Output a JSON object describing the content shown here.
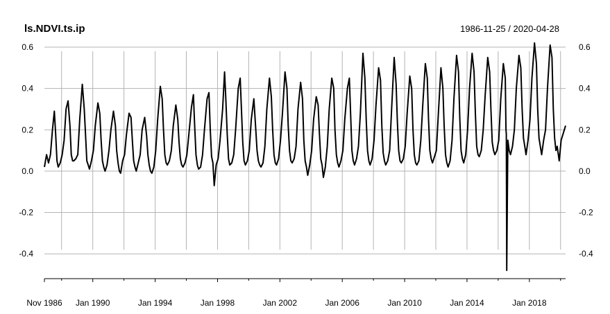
{
  "chart_data": {
    "type": "line",
    "title": "ls.NDVI.ts.ip",
    "date_range_label": "1986-11-25 / 2020-04-28",
    "xlabel": "",
    "ylabel": "",
    "xlim": [
      "1986-11-25",
      "2020-04-28"
    ],
    "ylim": [
      -0.52,
      0.62
    ],
    "y_ticks": [
      -0.4,
      -0.2,
      0.0,
      0.2,
      0.4,
      0.6
    ],
    "y_tick_labels": [
      "-0.4",
      "-0.2",
      "0.0",
      "0.2",
      "0.4",
      "0.6"
    ],
    "x_ticks": [
      "1986-11-25",
      "1990-01-01",
      "1994-01-01",
      "1998-01-01",
      "2002-01-01",
      "2006-01-01",
      "2010-01-01",
      "2014-01-01",
      "2018-01-01"
    ],
    "x_tick_labels": [
      "Nov 1986",
      "Jan 1990",
      "Jan 1994",
      "Jan 1998",
      "Jan 2002",
      "Jan 2006",
      "Jan 2010",
      "Jan 2014",
      "Jan 2018"
    ],
    "minor_x_ticks": [
      "1988-01-01",
      "1992-01-01",
      "1996-01-01",
      "2000-01-01",
      "2004-01-01",
      "2008-01-01",
      "2012-01-01",
      "2016-01-01",
      "2020-01-01"
    ],
    "grid": true,
    "y_axis_both_sides": true,
    "series_color": "#000000",
    "grid_color": "#b3b3b3",
    "series": [
      {
        "x": [
          "1986-11-25",
          "1987-01-15",
          "1987-03-01",
          "1987-04-15",
          "1987-06-01",
          "1987-07-15",
          "1987-08-15",
          "1987-09-15",
          "1987-10-15",
          "1987-12-01",
          "1988-01-15",
          "1988-03-01",
          "1988-04-15",
          "1988-06-01",
          "1988-07-15",
          "1988-08-15",
          "1988-09-15",
          "1988-10-15",
          "1988-12-01",
          "1989-01-15",
          "1989-03-01",
          "1989-05-01",
          "1989-06-15",
          "1989-07-15",
          "1989-08-15",
          "1989-09-15",
          "1989-10-15",
          "1989-12-01",
          "1990-01-15",
          "1990-03-01",
          "1990-05-01",
          "1990-06-15",
          "1990-07-15",
          "1990-08-15",
          "1990-09-15",
          "1990-10-15",
          "1990-12-01",
          "1991-01-15",
          "1991-03-01",
          "1991-05-01",
          "1991-06-15",
          "1991-07-15",
          "1991-08-15",
          "1991-09-15",
          "1991-10-15",
          "1991-12-01",
          "1992-01-15",
          "1992-03-01",
          "1992-05-01",
          "1992-06-15",
          "1992-07-15",
          "1992-08-15",
          "1992-09-15",
          "1992-10-15",
          "1992-12-01",
          "1993-01-15",
          "1993-03-01",
          "1993-05-01",
          "1993-06-15",
          "1993-07-15",
          "1993-08-15",
          "1993-09-15",
          "1993-10-15",
          "1993-12-01",
          "1994-01-15",
          "1994-03-01",
          "1994-05-01",
          "1994-06-15",
          "1994-07-15",
          "1994-08-15",
          "1994-09-15",
          "1994-10-15",
          "1994-12-01",
          "1995-01-15",
          "1995-03-01",
          "1995-05-01",
          "1995-06-15",
          "1995-07-15",
          "1995-08-15",
          "1995-09-15",
          "1995-10-15",
          "1995-12-01",
          "1996-01-15",
          "1996-03-01",
          "1996-05-01",
          "1996-06-15",
          "1996-07-15",
          "1996-08-15",
          "1996-09-15",
          "1996-10-15",
          "1996-12-01",
          "1997-01-15",
          "1997-03-01",
          "1997-05-01",
          "1997-06-15",
          "1997-07-15",
          "1997-08-15",
          "1997-09-15",
          "1997-10-15",
          "1997-12-01",
          "1998-01-15",
          "1998-03-01",
          "1998-05-01",
          "1998-06-15",
          "1998-07-15",
          "1998-08-15",
          "1998-09-15",
          "1998-10-15",
          "1998-12-01",
          "1999-01-15",
          "1999-03-01",
          "1999-05-01",
          "1999-06-15",
          "1999-07-15",
          "1999-08-15",
          "1999-09-15",
          "1999-10-15",
          "1999-12-01",
          "2000-01-15",
          "2000-03-01",
          "2000-05-01",
          "2000-06-15",
          "2000-07-15",
          "2000-08-15",
          "2000-09-15",
          "2000-10-15",
          "2000-12-01",
          "2001-01-15",
          "2001-03-01",
          "2001-05-01",
          "2001-06-15",
          "2001-07-15",
          "2001-08-15",
          "2001-09-15",
          "2001-10-15",
          "2001-12-01",
          "2002-01-15",
          "2002-03-01",
          "2002-05-01",
          "2002-06-15",
          "2002-07-15",
          "2002-08-15",
          "2002-09-15",
          "2002-10-15",
          "2002-12-01",
          "2003-01-15",
          "2003-03-01",
          "2003-05-01",
          "2003-06-15",
          "2003-07-15",
          "2003-08-15",
          "2003-09-15",
          "2003-10-15",
          "2003-12-01",
          "2004-01-15",
          "2004-03-01",
          "2004-05-01",
          "2004-06-15",
          "2004-07-15",
          "2004-08-15",
          "2004-09-15",
          "2004-10-15",
          "2004-12-01",
          "2005-01-15",
          "2005-03-01",
          "2005-05-01",
          "2005-06-15",
          "2005-07-15",
          "2005-08-15",
          "2005-09-15",
          "2005-10-15",
          "2005-12-01",
          "2006-01-15",
          "2006-03-01",
          "2006-05-01",
          "2006-06-15",
          "2006-07-15",
          "2006-08-15",
          "2006-09-15",
          "2006-10-15",
          "2006-12-01",
          "2007-01-15",
          "2007-03-01",
          "2007-05-01",
          "2007-06-15",
          "2007-07-15",
          "2007-08-15",
          "2007-09-15",
          "2007-10-15",
          "2007-12-01",
          "2008-01-15",
          "2008-03-01",
          "2008-05-01",
          "2008-06-15",
          "2008-07-15",
          "2008-08-15",
          "2008-09-15",
          "2008-10-15",
          "2008-12-01",
          "2009-01-15",
          "2009-03-01",
          "2009-05-01",
          "2009-06-15",
          "2009-07-15",
          "2009-08-15",
          "2009-09-15",
          "2009-10-15",
          "2009-12-01",
          "2010-01-15",
          "2010-03-01",
          "2010-05-01",
          "2010-06-15",
          "2010-07-15",
          "2010-08-15",
          "2010-09-15",
          "2010-10-15",
          "2010-12-01",
          "2011-01-15",
          "2011-03-01",
          "2011-05-01",
          "2011-06-15",
          "2011-07-15",
          "2011-08-15",
          "2011-09-15",
          "2011-10-15",
          "2011-12-01",
          "2012-01-15",
          "2012-03-01",
          "2012-05-01",
          "2012-06-15",
          "2012-07-15",
          "2012-08-15",
          "2012-09-15",
          "2012-10-15",
          "2012-12-01",
          "2013-01-15",
          "2013-03-01",
          "2013-05-01",
          "2013-06-15",
          "2013-07-15",
          "2013-08-15",
          "2013-09-15",
          "2013-10-15",
          "2013-12-01",
          "2014-01-15",
          "2014-03-01",
          "2014-05-01",
          "2014-06-15",
          "2014-07-15",
          "2014-08-15",
          "2014-09-15",
          "2014-10-15",
          "2014-12-01",
          "2015-01-15",
          "2015-03-01",
          "2015-05-01",
          "2015-06-15",
          "2015-07-15",
          "2015-08-15",
          "2015-09-15",
          "2015-10-15",
          "2015-12-01",
          "2016-01-15",
          "2016-03-01",
          "2016-05-01",
          "2016-06-15",
          "2016-07-01",
          "2016-07-10",
          "2016-07-20",
          "2016-08-15",
          "2016-09-15",
          "2016-10-15",
          "2016-12-01",
          "2017-01-15",
          "2017-03-01",
          "2017-05-01",
          "2017-06-15",
          "2017-07-15",
          "2017-08-15",
          "2017-09-15",
          "2017-10-15",
          "2017-12-01",
          "2018-01-15",
          "2018-03-01",
          "2018-05-01",
          "2018-06-15",
          "2018-07-15",
          "2018-08-15",
          "2018-09-15",
          "2018-10-15",
          "2018-12-01",
          "2019-01-15",
          "2019-03-01",
          "2019-05-01",
          "2019-06-15",
          "2019-07-15",
          "2019-08-15",
          "2019-09-15",
          "2019-10-15",
          "2019-12-01",
          "2020-01-15",
          "2020-03-01",
          "2020-04-28"
        ],
        "y": [
          0.02,
          0.08,
          0.04,
          0.08,
          0.2,
          0.29,
          0.18,
          0.05,
          0.02,
          0.04,
          0.08,
          0.15,
          0.3,
          0.34,
          0.22,
          0.08,
          0.05,
          0.05,
          0.06,
          0.08,
          0.25,
          0.42,
          0.3,
          0.18,
          0.05,
          0.03,
          0.01,
          0.05,
          0.1,
          0.22,
          0.33,
          0.28,
          0.15,
          0.05,
          0.02,
          0.0,
          0.03,
          0.1,
          0.2,
          0.29,
          0.22,
          0.1,
          0.04,
          0.0,
          -0.01,
          0.05,
          0.08,
          0.18,
          0.28,
          0.26,
          0.15,
          0.05,
          0.02,
          0.0,
          0.04,
          0.08,
          0.2,
          0.26,
          0.17,
          0.08,
          0.03,
          0.0,
          -0.01,
          0.02,
          0.1,
          0.25,
          0.41,
          0.35,
          0.2,
          0.08,
          0.04,
          0.03,
          0.05,
          0.1,
          0.22,
          0.32,
          0.25,
          0.14,
          0.06,
          0.03,
          0.02,
          0.04,
          0.08,
          0.18,
          0.31,
          0.37,
          0.22,
          0.08,
          0.03,
          0.01,
          0.02,
          0.08,
          0.2,
          0.35,
          0.38,
          0.2,
          0.07,
          0.04,
          -0.07,
          0.03,
          0.06,
          0.15,
          0.3,
          0.48,
          0.35,
          0.18,
          0.06,
          0.03,
          0.04,
          0.08,
          0.2,
          0.4,
          0.45,
          0.3,
          0.14,
          0.05,
          0.03,
          0.05,
          0.1,
          0.25,
          0.35,
          0.2,
          0.1,
          0.05,
          0.03,
          0.02,
          0.04,
          0.12,
          0.3,
          0.45,
          0.36,
          0.2,
          0.08,
          0.04,
          0.03,
          0.06,
          0.15,
          0.28,
          0.48,
          0.4,
          0.22,
          0.1,
          0.05,
          0.04,
          0.06,
          0.12,
          0.3,
          0.43,
          0.35,
          0.15,
          0.05,
          0.02,
          -0.02,
          0.03,
          0.1,
          0.25,
          0.36,
          0.32,
          0.18,
          0.06,
          0.03,
          -0.03,
          0.02,
          0.12,
          0.3,
          0.45,
          0.4,
          0.2,
          0.08,
          0.04,
          0.02,
          0.05,
          0.1,
          0.25,
          0.4,
          0.45,
          0.28,
          0.1,
          0.05,
          0.03,
          0.06,
          0.12,
          0.28,
          0.57,
          0.45,
          0.25,
          0.1,
          0.05,
          0.03,
          0.06,
          0.15,
          0.32,
          0.5,
          0.44,
          0.22,
          0.09,
          0.05,
          0.03,
          0.05,
          0.1,
          0.3,
          0.55,
          0.42,
          0.24,
          0.1,
          0.05,
          0.04,
          0.06,
          0.12,
          0.28,
          0.46,
          0.4,
          0.2,
          0.08,
          0.04,
          0.03,
          0.05,
          0.15,
          0.32,
          0.52,
          0.45,
          0.25,
          0.1,
          0.06,
          0.04,
          0.07,
          0.1,
          0.28,
          0.5,
          0.4,
          0.22,
          0.08,
          0.04,
          0.02,
          0.05,
          0.15,
          0.35,
          0.56,
          0.48,
          0.26,
          0.1,
          0.06,
          0.04,
          0.08,
          0.2,
          0.4,
          0.57,
          0.48,
          0.28,
          0.12,
          0.08,
          0.07,
          0.1,
          0.2,
          0.36,
          0.55,
          0.48,
          0.3,
          0.14,
          0.1,
          0.08,
          0.1,
          0.15,
          0.35,
          0.52,
          0.45,
          0.2,
          0.18,
          -0.48,
          0.15,
          0.1,
          0.08,
          0.12,
          0.2,
          0.4,
          0.56,
          0.5,
          0.3,
          0.16,
          0.12,
          0.08,
          0.15,
          0.25,
          0.45,
          0.62,
          0.52,
          0.3,
          0.16,
          0.12,
          0.08,
          0.15,
          0.2,
          0.4,
          0.61,
          0.55,
          0.3,
          0.16,
          0.1,
          0.12,
          0.05,
          0.15,
          0.18,
          0.22
        ]
      }
    ]
  }
}
